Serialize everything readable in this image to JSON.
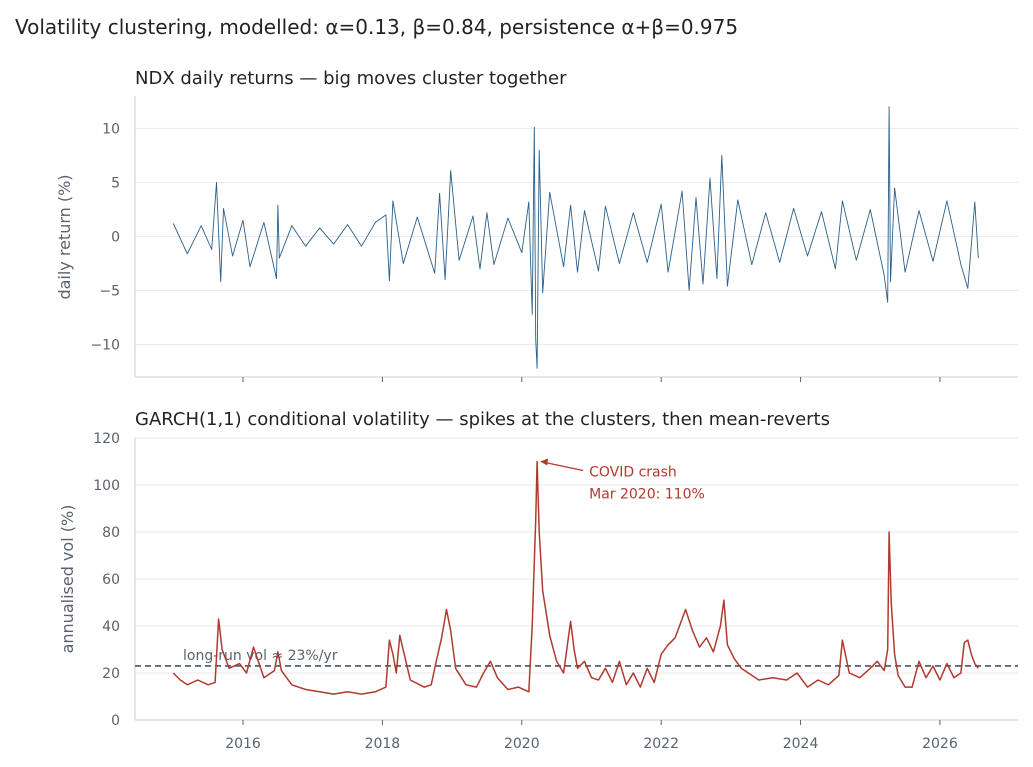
{
  "figure": {
    "suptitle": "Volatility clustering, modelled: α=0.13, β=0.84, persistence α+β=0.975"
  },
  "chart_data": [
    {
      "type": "line",
      "title": "NDX daily returns — big moves cluster together",
      "xlabel": "",
      "ylabel": "daily return (%)",
      "xlim": [
        2014.45,
        2027.12
      ],
      "ylim": [
        -13,
        13
      ],
      "yticks": [
        -10,
        -5,
        0,
        5,
        10
      ],
      "ytick_labels": [
        "−10",
        "−5",
        "0",
        "5",
        "10"
      ],
      "xticks": [
        2016,
        2018,
        2020,
        2022,
        2024,
        2026
      ],
      "x_tick_labels_shown": false,
      "grid": "y",
      "color": "#2c5f8a",
      "series": [
        {
          "x": [
            2015.0,
            2015.2,
            2015.4,
            2015.55,
            2015.62,
            2015.68,
            2015.72,
            2015.85,
            2016.0,
            2016.1,
            2016.3,
            2016.48,
            2016.5,
            2016.52,
            2016.7,
            2016.9,
            2017.1,
            2017.3,
            2017.5,
            2017.7,
            2017.9,
            2018.05,
            2018.1,
            2018.15,
            2018.3,
            2018.5,
            2018.75,
            2018.82,
            2018.9,
            2018.98,
            2019.1,
            2019.3,
            2019.4,
            2019.5,
            2019.6,
            2019.8,
            2020.0,
            2020.1,
            2020.15,
            2020.18,
            2020.2,
            2020.22,
            2020.25,
            2020.3,
            2020.4,
            2020.6,
            2020.7,
            2020.8,
            2020.9,
            2021.1,
            2021.2,
            2021.4,
            2021.6,
            2021.8,
            2022.0,
            2022.1,
            2022.3,
            2022.4,
            2022.5,
            2022.6,
            2022.7,
            2022.8,
            2022.87,
            2022.95,
            2023.1,
            2023.3,
            2023.5,
            2023.7,
            2023.9,
            2024.1,
            2024.3,
            2024.5,
            2024.6,
            2024.8,
            2025.0,
            2025.2,
            2025.25,
            2025.27,
            2025.29,
            2025.35,
            2025.5,
            2025.7,
            2025.9,
            2026.1,
            2026.3,
            2026.4,
            2026.5,
            2026.55
          ],
          "y": [
            1.2,
            -1.6,
            1.0,
            -1.2,
            5.0,
            -4.2,
            2.6,
            -1.8,
            1.5,
            -2.8,
            1.3,
            -3.9,
            2.9,
            -2.0,
            1.0,
            -0.9,
            0.8,
            -0.7,
            1.1,
            -0.9,
            1.3,
            2.0,
            -4.1,
            3.3,
            -2.5,
            1.8,
            -3.4,
            4.0,
            -4.0,
            6.1,
            -2.2,
            1.9,
            -3.0,
            2.2,
            -2.6,
            1.7,
            -1.5,
            3.2,
            -7.2,
            10.1,
            -9.5,
            -12.2,
            8.0,
            -5.2,
            4.1,
            -2.8,
            2.9,
            -3.3,
            2.4,
            -3.2,
            2.8,
            -2.5,
            2.2,
            -2.4,
            3.0,
            -3.3,
            4.2,
            -5.0,
            3.6,
            -4.4,
            5.4,
            -3.9,
            7.5,
            -4.6,
            3.4,
            -2.6,
            2.2,
            -2.4,
            2.6,
            -1.8,
            2.3,
            -3.0,
            3.3,
            -2.2,
            2.5,
            -3.6,
            -6.1,
            12.0,
            -4.2,
            4.5,
            -3.3,
            2.4,
            -2.3,
            3.3,
            -2.6,
            -4.8,
            3.2,
            -2.0
          ]
        }
      ]
    },
    {
      "type": "line",
      "title": "GARCH(1,1) conditional volatility — spikes at the clusters, then mean-reverts",
      "xlabel": "",
      "ylabel": "annualised vol (%)",
      "xlim": [
        2014.45,
        2027.12
      ],
      "ylim": [
        0,
        120
      ],
      "yticks": [
        0,
        20,
        40,
        60,
        80,
        100,
        120
      ],
      "xticks": [
        2016,
        2018,
        2020,
        2022,
        2024,
        2026
      ],
      "x_tick_labels": [
        "2016",
        "2018",
        "2020",
        "2022",
        "2024",
        "2026"
      ],
      "grid": "y",
      "color": "#b03a2e",
      "long_run": {
        "value": 23,
        "label": "long-run vol ≈ 23%/yr"
      },
      "annotation": {
        "x": 2020.22,
        "y": 110,
        "line1": "COVID crash",
        "line2": "Mar 2020: 110%"
      },
      "series": [
        {
          "x": [
            2015.0,
            2015.1,
            2015.2,
            2015.35,
            2015.5,
            2015.6,
            2015.65,
            2015.7,
            2015.8,
            2015.95,
            2016.05,
            2016.15,
            2016.3,
            2016.45,
            2016.5,
            2016.55,
            2016.7,
            2016.9,
            2017.1,
            2017.3,
            2017.5,
            2017.7,
            2017.9,
            2018.05,
            2018.1,
            2018.15,
            2018.2,
            2018.25,
            2018.4,
            2018.6,
            2018.7,
            2018.78,
            2018.85,
            2018.92,
            2018.98,
            2019.05,
            2019.2,
            2019.35,
            2019.45,
            2019.55,
            2019.65,
            2019.8,
            2019.95,
            2020.1,
            2020.15,
            2020.2,
            2020.22,
            2020.25,
            2020.3,
            2020.4,
            2020.5,
            2020.6,
            2020.7,
            2020.75,
            2020.8,
            2020.9,
            2021.0,
            2021.1,
            2021.2,
            2021.3,
            2021.4,
            2021.5,
            2021.6,
            2021.7,
            2021.8,
            2021.9,
            2022.0,
            2022.1,
            2022.2,
            2022.35,
            2022.45,
            2022.55,
            2022.65,
            2022.75,
            2022.85,
            2022.9,
            2022.95,
            2023.05,
            2023.15,
            2023.25,
            2023.4,
            2023.6,
            2023.8,
            2023.95,
            2024.1,
            2024.25,
            2024.4,
            2024.55,
            2024.6,
            2024.7,
            2024.85,
            2025.0,
            2025.1,
            2025.2,
            2025.25,
            2025.27,
            2025.3,
            2025.35,
            2025.4,
            2025.5,
            2025.6,
            2025.7,
            2025.8,
            2025.9,
            2026.0,
            2026.1,
            2026.2,
            2026.3,
            2026.35,
            2026.4,
            2026.45,
            2026.5,
            2026.55
          ],
          "y": [
            20,
            17,
            15,
            17,
            15,
            16,
            43,
            30,
            22,
            24,
            20,
            31,
            18,
            21,
            29,
            21,
            15,
            13,
            12,
            11,
            12,
            11,
            12,
            14,
            34,
            28,
            20,
            36,
            17,
            14,
            15,
            26,
            35,
            47,
            38,
            22,
            15,
            14,
            20,
            25,
            18,
            13,
            14,
            12,
            40,
            85,
            110,
            80,
            55,
            36,
            25,
            20,
            42,
            30,
            22,
            25,
            18,
            17,
            22,
            16,
            25,
            15,
            20,
            14,
            22,
            16,
            28,
            32,
            35,
            47,
            38,
            31,
            35,
            29,
            40,
            51,
            32,
            26,
            22,
            20,
            17,
            18,
            17,
            20,
            14,
            17,
            15,
            19,
            34,
            20,
            18,
            22,
            25,
            21,
            30,
            80,
            50,
            28,
            19,
            14,
            14,
            25,
            18,
            23,
            17,
            24,
            18,
            20,
            33,
            34,
            28,
            24,
            22
          ]
        }
      ]
    }
  ]
}
